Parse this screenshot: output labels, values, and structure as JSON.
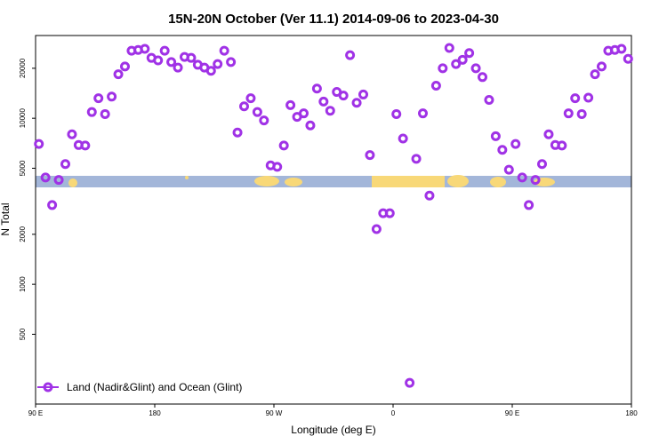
{
  "chart_data": {
    "type": "scatter",
    "title": "15N-20N October (Ver 11.1)   2014-09-06 to 2023-04-30",
    "x_label": "Longitude (deg E)",
    "y_label": "N Total",
    "log_y": true,
    "xlim": [
      90,
      540
    ],
    "ylim": [
      190,
      31500
    ],
    "xticks": [
      {
        "value": 90,
        "label": "90 E"
      },
      180,
      {
        "value": 270,
        "label": "90 W"
      },
      {
        "value": 360,
        "label": "0"
      },
      {
        "value": 450,
        "label": "90 E"
      },
      {
        "value": 540,
        "label": "180"
      }
    ],
    "yticks": [
      500,
      1000,
      2000,
      5000,
      10000,
      20000
    ],
    "legend": "bottom-left",
    "series": [
      {
        "name": "Land (Nadir&Glint) and Ocean (Glint)",
        "color": "#a032e6",
        "x": [
          92.5,
          97.5,
          102.5,
          107.5,
          112.5,
          117.5,
          122.5,
          127.5,
          132.5,
          137.5,
          142.5,
          147.5,
          152.5,
          157.5,
          162.5,
          167.5,
          172.5,
          177.5,
          182.5,
          187.5,
          192.5,
          197.5,
          202.5,
          207.5,
          212.5,
          217.5,
          222.5,
          227.5,
          232.5,
          237.5,
          242.5,
          247.5,
          252.5,
          257.5,
          262.5,
          267.5,
          272.5,
          277.5,
          282.5,
          287.5,
          292.5,
          297.5,
          302.5,
          307.5,
          312.5,
          317.5,
          322.5,
          327.5,
          332.5,
          337.5,
          342.5,
          347.5,
          352.5,
          357.5,
          362.5,
          367.5,
          372.5,
          377.5,
          382.5,
          387.5,
          392.5,
          397.5,
          402.5,
          407.5,
          412.5,
          417.5,
          422.5,
          427.5,
          432.5,
          437.5,
          442.5,
          447.5,
          452.5,
          457.5,
          462.5,
          467.5,
          472.5,
          477.5,
          482.5,
          487.5,
          492.5,
          497.5,
          502.5,
          507.5,
          512.5,
          517.5,
          522.5,
          527.5,
          532.5,
          537.5
        ],
        "values": [
          7000,
          4400,
          3000,
          4250,
          5300,
          8000,
          6900,
          6850,
          10900,
          13200,
          10600,
          13500,
          18400,
          20500,
          25500,
          25800,
          26200,
          23100,
          22300,
          25500,
          21800,
          20200,
          23400,
          23100,
          21000,
          20200,
          19300,
          21200,
          25500,
          21800,
          8200,
          11800,
          13200,
          10900,
          9700,
          5200,
          5100,
          6850,
          12000,
          10200,
          10700,
          9050,
          15100,
          12600,
          11100,
          14400,
          13700,
          24000,
          12400,
          13900,
          6000,
          2150,
          2680,
          2680,
          10600,
          7550,
          255,
          5700,
          10700,
          3420,
          15700,
          20000,
          26500,
          21200,
          22500,
          24700,
          20000,
          17700,
          12900,
          7800,
          6450,
          4900,
          7000,
          4400,
          3000,
          4250,
          5300,
          8000,
          6900,
          6850,
          10700,
          13200,
          10600,
          13300,
          18400,
          20500,
          25500,
          25800,
          26200,
          22800
        ]
      }
    ]
  }
}
